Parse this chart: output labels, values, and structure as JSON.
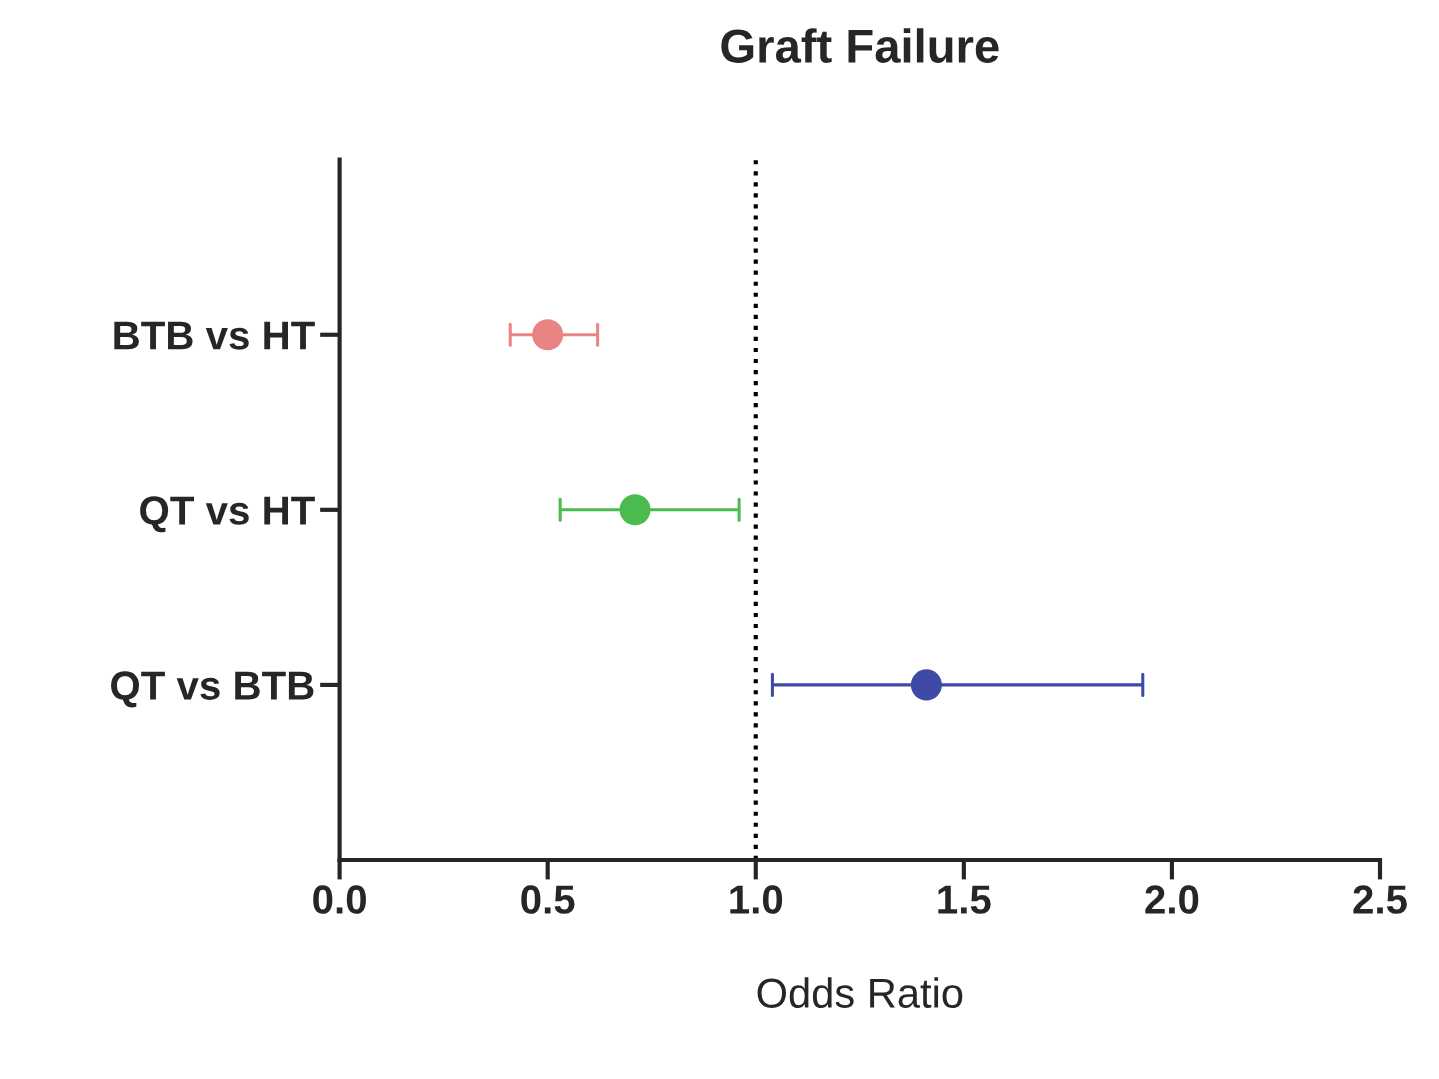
{
  "chart_data": {
    "type": "scatter",
    "orientation": "horizontal",
    "title": "Graft Failure",
    "xlabel": "Odds Ratio",
    "categories": [
      "BTB vs HT",
      "QT vs HT",
      "QT vs BTB"
    ],
    "values": [
      0.5,
      0.71,
      1.41
    ],
    "errors": [
      [
        0.41,
        0.62
      ],
      [
        0.53,
        0.96
      ],
      [
        1.04,
        1.93
      ]
    ],
    "colors": [
      "#e88484",
      "#4cbb4f",
      "#3f4aa6"
    ],
    "marker": "circle",
    "xlim": [
      0,
      2.5
    ],
    "xticks": [
      {
        "value": 0,
        "label": "0.0"
      },
      0.5,
      {
        "value": 1,
        "label": "1.0"
      },
      1.5,
      {
        "value": 2,
        "label": "2.0"
      },
      2.5
    ],
    "ref_lines": [
      {
        "axis": "x",
        "value": 1,
        "line_style": "dotted",
        "color": "#000000"
      }
    ],
    "grid": false,
    "legend": false
  }
}
